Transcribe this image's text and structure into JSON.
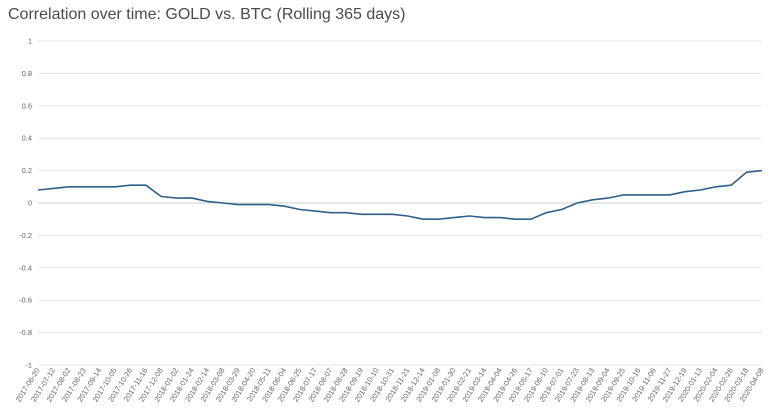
{
  "chart_data": {
    "type": "line",
    "title": "Correlation over time: GOLD vs. BTC (Rolling 365 days)",
    "xlabel": "",
    "ylabel": "",
    "ylim": [
      -1,
      1
    ],
    "yticks": [
      1,
      0.8,
      0.6,
      0.4,
      0.2,
      0,
      -0.2,
      -0.4,
      -0.6,
      -0.8,
      -1
    ],
    "ytick_labels": [
      "1",
      "0.8",
      "0.6",
      "0.4",
      "0.2",
      "0",
      "-0.2",
      "-0.4",
      "-0.6",
      "-0.8",
      "-1"
    ],
    "xticks": [
      "2017-06-20",
      "2017-07-12",
      "2017-08-02",
      "2017-08-23",
      "2017-09-14",
      "2017-10-05",
      "2017-10-26",
      "2017-11-16",
      "2017-12-08",
      "2018-01-02",
      "2018-01-24",
      "2018-02-14",
      "2018-03-08",
      "2018-03-29",
      "2018-04-20",
      "2018-05-11",
      "2018-06-04",
      "2018-06-25",
      "2018-07-17",
      "2018-08-07",
      "2018-08-28",
      "2018-09-19",
      "2018-10-10",
      "2018-10-31",
      "2018-11-21",
      "2018-12-14",
      "2019-01-08",
      "2019-01-30",
      "2019-02-21",
      "2019-03-14",
      "2019-04-04",
      "2019-04-26",
      "2019-05-17",
      "2019-06-10",
      "2019-07-01",
      "2019-07-23",
      "2019-08-13",
      "2019-09-04",
      "2019-09-25",
      "2019-10-16",
      "2019-11-06",
      "2019-11-27",
      "2019-12-19",
      "2020-01-13",
      "2020-02-04",
      "2020-02-26",
      "2020-03-18",
      "2020-04-08"
    ],
    "grid": true,
    "series": [
      {
        "values": [
          0.08,
          0.09,
          0.1,
          0.1,
          0.1,
          0.1,
          0.11,
          0.11,
          0.04,
          0.03,
          0.03,
          0.01,
          0.0,
          -0.01,
          -0.01,
          -0.01,
          -0.02,
          -0.04,
          -0.05,
          -0.06,
          -0.06,
          -0.07,
          -0.07,
          -0.07,
          -0.08,
          -0.1,
          -0.1,
          -0.09,
          -0.08,
          -0.09,
          -0.09,
          -0.1,
          -0.1,
          -0.06,
          -0.04,
          0.0,
          0.02,
          0.03,
          0.05,
          0.05,
          0.05,
          0.05,
          0.07,
          0.08,
          0.1,
          0.11,
          0.19,
          0.2
        ],
        "color": "#2f5f8a"
      }
    ]
  }
}
